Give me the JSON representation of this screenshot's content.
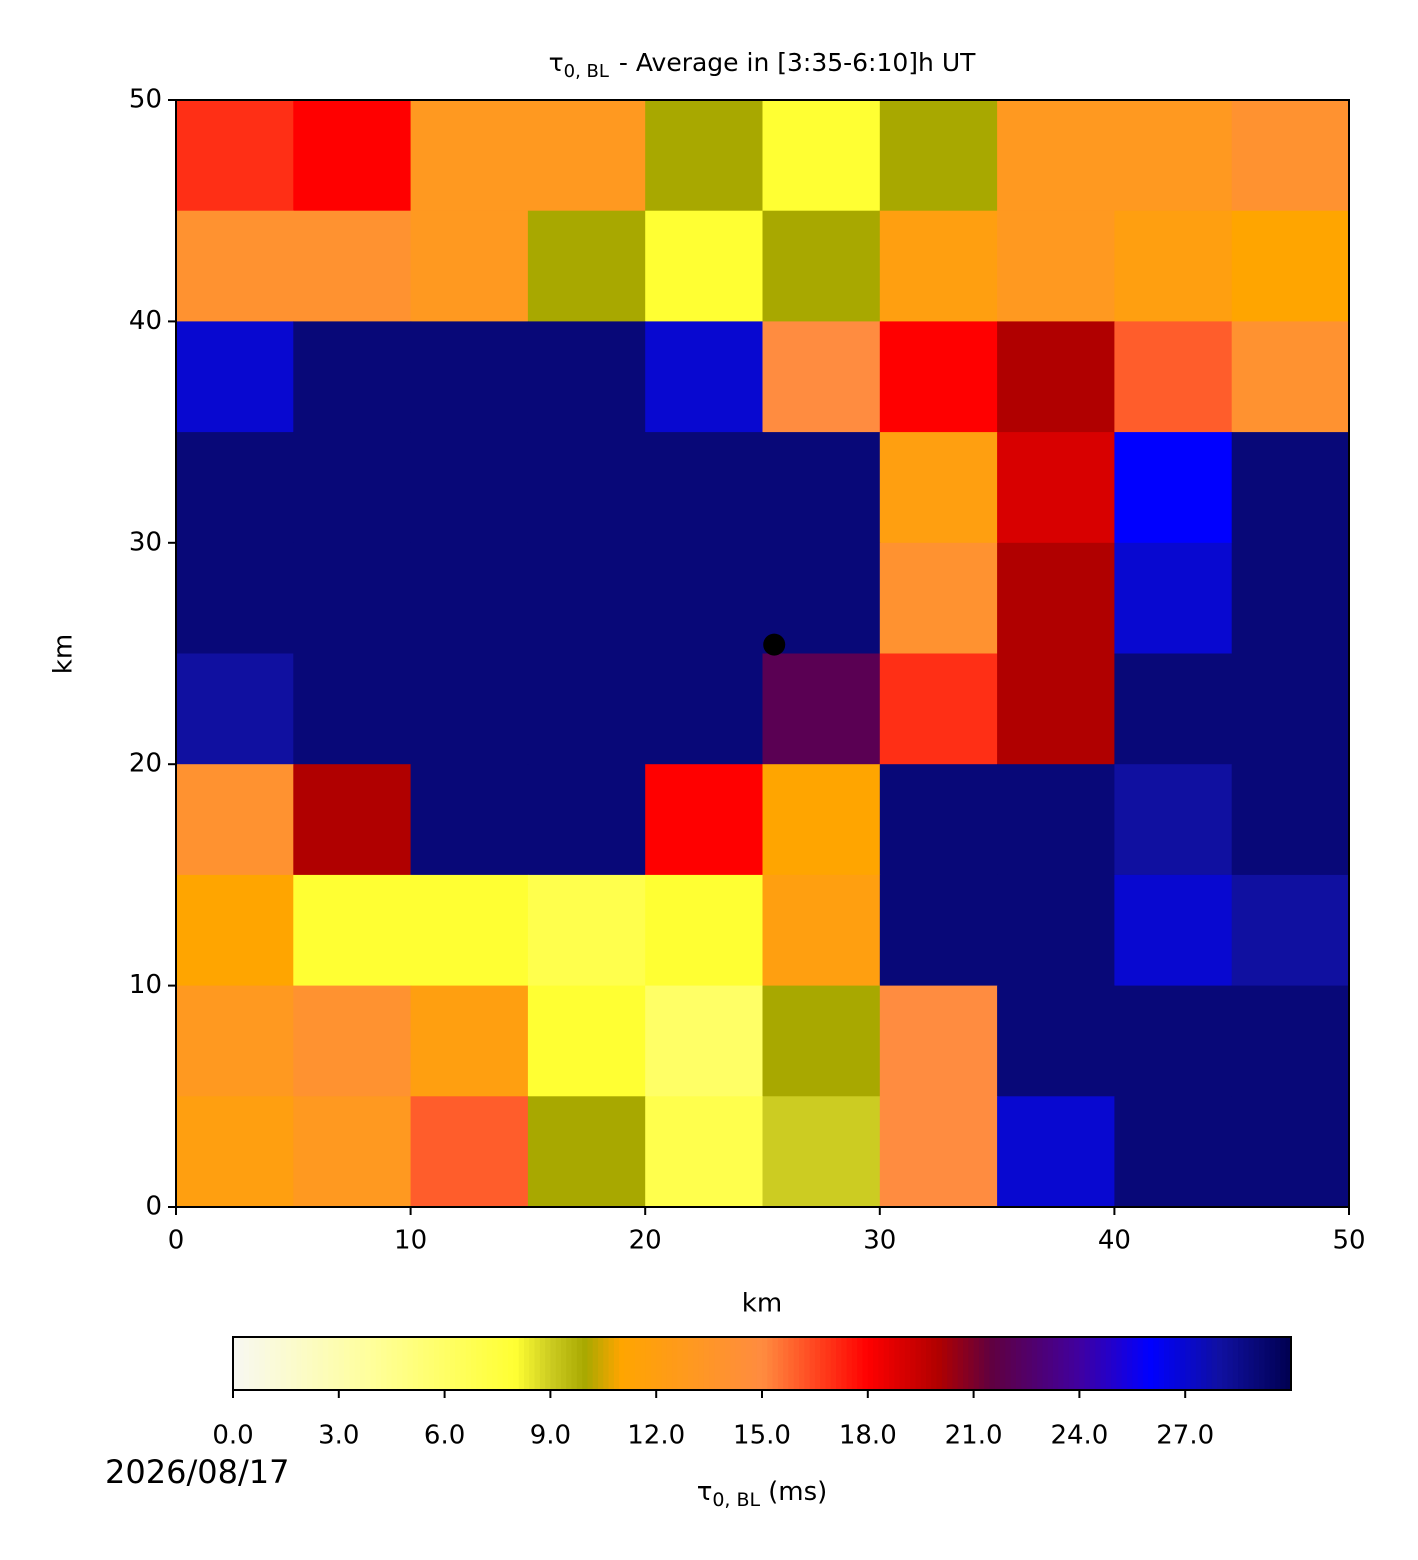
{
  "chart_data": {
    "type": "heatmap",
    "title": {
      "symbol": "τ",
      "subscript": "0, BL",
      "text": "- Average in [3:35-6:10]h UT"
    },
    "x_label": "km",
    "y_label": "km",
    "xlim": [
      0,
      50
    ],
    "ylim": [
      0,
      50
    ],
    "xticks": [
      0,
      10,
      20,
      30,
      40,
      50
    ],
    "yticks": [
      0,
      10,
      20,
      30,
      40,
      50
    ],
    "z": [
      [
        17,
        18,
        13,
        13,
        10,
        8,
        10,
        13,
        13,
        14
      ],
      [
        14,
        14,
        13,
        10,
        8,
        10,
        12,
        13,
        12,
        11
      ],
      [
        27,
        29,
        29,
        29,
        27,
        15,
        18,
        20,
        16,
        14
      ],
      [
        29,
        29,
        29,
        29,
        29,
        29,
        12,
        19,
        26,
        29
      ],
      [
        29,
        29,
        29,
        29,
        29,
        29,
        14,
        20,
        27,
        29
      ],
      [
        28,
        29,
        29,
        29,
        29,
        22,
        17,
        20,
        29,
        29
      ],
      [
        14,
        20,
        29,
        29,
        18,
        11,
        29,
        29,
        28,
        29
      ],
      [
        11,
        8,
        8,
        7,
        8,
        12,
        29,
        29,
        27,
        28
      ],
      [
        13,
        14,
        12,
        8,
        6,
        10,
        15,
        29,
        29,
        29
      ],
      [
        12,
        13,
        16,
        10,
        7,
        9,
        15,
        27,
        29,
        29
      ]
    ],
    "marker": {
      "x": 25.5,
      "y": 25.4
    },
    "colorbar": {
      "lim": [
        0,
        30
      ],
      "ticks": [
        {
          "value": 0,
          "label": "0.0"
        },
        {
          "value": 3,
          "label": "3.0"
        },
        {
          "value": 6,
          "label": "6.0"
        },
        {
          "value": 9,
          "label": "9.0"
        },
        {
          "value": 12,
          "label": "12.0"
        },
        {
          "value": 15,
          "label": "15.0"
        },
        {
          "value": 18,
          "label": "18.0"
        },
        {
          "value": 21,
          "label": "21.0"
        },
        {
          "value": 24,
          "label": "24.0"
        },
        {
          "value": 27,
          "label": "27.0"
        }
      ],
      "stops": [
        [
          0,
          "#f8f8f2"
        ],
        [
          4,
          "#ffff99"
        ],
        [
          8,
          "#ffff33"
        ],
        [
          9,
          "#cccc22"
        ],
        [
          10,
          "#a8a800"
        ],
        [
          11,
          "#ffa500"
        ],
        [
          15,
          "#ff8c40"
        ],
        [
          18,
          "#ff0000"
        ],
        [
          20,
          "#b00000"
        ],
        [
          21.5,
          "#600040"
        ],
        [
          24,
          "#4000a0"
        ],
        [
          26,
          "#0000ff"
        ],
        [
          28,
          "#1010a0"
        ],
        [
          30,
          "#000050"
        ]
      ],
      "label": {
        "symbol": "τ",
        "subscript": "0, BL",
        "unit": "(ms)"
      }
    },
    "date": "2026/08/17"
  }
}
